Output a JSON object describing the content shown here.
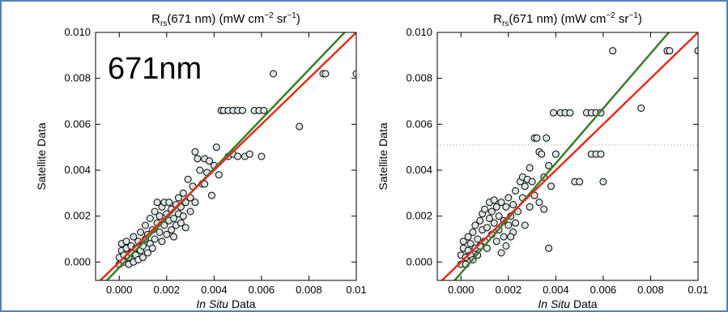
{
  "overlay_label": "671nm",
  "chart_data": [
    {
      "type": "scatter",
      "title": "Rrs(671 nm) (mW cm−2 sr−1)",
      "title_parts": {
        "main": "R",
        "sub": "rs",
        "wave": "(671 nm) (mW cm",
        "exp1": "−2",
        "mid": " sr",
        "exp2": "−1",
        "end": ")"
      },
      "xlabel": "In Situ Data",
      "xlabel_parts": {
        "italic": "In Situ",
        "rest": " Data"
      },
      "ylabel": "Satellite Data",
      "xlim": [
        -0.001,
        0.01
      ],
      "ylim": [
        -0.0008,
        0.01
      ],
      "xticks": [
        "0.000",
        "0.002",
        "0.004",
        "0.006",
        "0.008",
        "0.01"
      ],
      "xtick_values": [
        0,
        0.002,
        0.004,
        0.006,
        0.008,
        0.01
      ],
      "yticks": [
        "0.000",
        "0.002",
        "0.004",
        "0.006",
        "0.008",
        "0.010"
      ],
      "ytick_values": [
        0,
        0.002,
        0.004,
        0.006,
        0.008,
        0.01
      ],
      "grid": false,
      "lines": [
        {
          "color": "#e0301e",
          "x": [
            -0.001,
            0.01
          ],
          "y": [
            -0.001,
            0.01
          ]
        },
        {
          "color": "#3a7d2a",
          "x": [
            -0.0008,
            0.0096
          ],
          "y": [
            -0.0011,
            0.0101
          ]
        }
      ],
      "hline": null,
      "points": [
        [
          0.0,
          -0.0001
        ],
        [
          0.0,
          0.0002
        ],
        [
          0.0001,
          0.0005
        ],
        [
          0.0001,
          0.0008
        ],
        [
          0.0002,
          0.0003
        ],
        [
          0.0002,
          0.0
        ],
        [
          0.0003,
          0.0006
        ],
        [
          0.0003,
          0.0009
        ],
        [
          0.0004,
          0.0002
        ],
        [
          0.0004,
          -0.0001
        ],
        [
          0.0005,
          0.0004
        ],
        [
          0.0005,
          0.0007
        ],
        [
          0.0006,
          0.0
        ],
        [
          0.0006,
          0.0011
        ],
        [
          0.0007,
          0.0003
        ],
        [
          0.0007,
          0.0006
        ],
        [
          0.0008,
          0.0009
        ],
        [
          0.0008,
          0.0001
        ],
        [
          0.0009,
          0.0005
        ],
        [
          0.0009,
          0.0013
        ],
        [
          0.001,
          0.0007
        ],
        [
          0.001,
          0.0002
        ],
        [
          0.0011,
          0.001
        ],
        [
          0.0011,
          0.0016
        ],
        [
          0.0012,
          0.0004
        ],
        [
          0.0012,
          0.0012
        ],
        [
          0.0013,
          0.0008
        ],
        [
          0.0013,
          0.0019
        ],
        [
          0.0014,
          0.0014
        ],
        [
          0.0014,
          0.0006
        ],
        [
          0.0015,
          0.0022
        ],
        [
          0.0015,
          0.001
        ],
        [
          0.0016,
          0.0017
        ],
        [
          0.0016,
          0.0026
        ],
        [
          0.0017,
          0.0013
        ],
        [
          0.0017,
          0.002
        ],
        [
          0.0018,
          0.0009
        ],
        [
          0.0018,
          0.0024
        ],
        [
          0.0019,
          0.0016
        ],
        [
          0.0019,
          0.0026
        ],
        [
          0.002,
          0.0012
        ],
        [
          0.002,
          0.0021
        ],
        [
          0.0021,
          0.0018
        ],
        [
          0.0021,
          0.0026
        ],
        [
          0.0022,
          0.0014
        ],
        [
          0.0022,
          0.0023
        ],
        [
          0.0023,
          0.0019
        ],
        [
          0.0023,
          0.0011
        ],
        [
          0.0024,
          0.0025
        ],
        [
          0.0024,
          0.0016
        ],
        [
          0.0025,
          0.0021
        ],
        [
          0.0025,
          0.0028
        ],
        [
          0.0026,
          0.0017
        ],
        [
          0.0026,
          0.0024
        ],
        [
          0.0027,
          0.003
        ],
        [
          0.0027,
          0.002
        ],
        [
          0.0028,
          0.0026
        ],
        [
          0.0028,
          0.0015
        ],
        [
          0.0029,
          0.0036
        ],
        [
          0.003,
          0.0028
        ],
        [
          0.003,
          0.0022
        ],
        [
          0.0031,
          0.0033
        ],
        [
          0.0032,
          0.0026
        ],
        [
          0.0033,
          0.0045
        ],
        [
          0.0034,
          0.004
        ],
        [
          0.0035,
          0.0034
        ],
        [
          0.0036,
          0.0045
        ],
        [
          0.0037,
          0.0039
        ],
        [
          0.0038,
          0.0044
        ],
        [
          0.004,
          0.0042
        ],
        [
          0.0041,
          0.005
        ],
        [
          0.0042,
          0.0038
        ],
        [
          0.0043,
          0.0066
        ],
        [
          0.0044,
          0.0066
        ],
        [
          0.0046,
          0.0066
        ],
        [
          0.0048,
          0.0066
        ],
        [
          0.005,
          0.0066
        ],
        [
          0.0052,
          0.0066
        ],
        [
          0.0046,
          0.0046
        ],
        [
          0.0048,
          0.0047
        ],
        [
          0.005,
          0.0046
        ],
        [
          0.0053,
          0.0046
        ],
        [
          0.0055,
          0.0047
        ],
        [
          0.0057,
          0.0066
        ],
        [
          0.0059,
          0.0066
        ],
        [
          0.0061,
          0.0066
        ],
        [
          0.006,
          0.0046
        ],
        [
          0.0065,
          0.0082
        ],
        [
          0.0076,
          0.0059
        ],
        [
          0.0086,
          0.0082
        ],
        [
          0.0087,
          0.0082
        ],
        [
          0.01,
          0.0082
        ],
        [
          0.0032,
          0.0048
        ],
        [
          0.0036,
          0.0034
        ],
        [
          0.0039,
          0.0029
        ]
      ]
    },
    {
      "type": "scatter",
      "title": "Rrs(671 nm) (mW cm−2 sr−1)",
      "title_parts": {
        "main": "R",
        "sub": "rs",
        "wave": "(671 nm) (mW cm",
        "exp1": "−2",
        "mid": " sr",
        "exp2": "−1",
        "end": ")"
      },
      "xlabel": "In Situ Data",
      "xlabel_parts": {
        "italic": "In Situ",
        "rest": " Data"
      },
      "ylabel": "Satellite Data",
      "xlim": [
        -0.001,
        0.01
      ],
      "ylim": [
        -0.0008,
        0.01
      ],
      "xticks": [
        "0.000",
        "0.002",
        "0.004",
        "0.006",
        "0.008",
        "0.01"
      ],
      "xtick_values": [
        0,
        0.002,
        0.004,
        0.006,
        0.008,
        0.01
      ],
      "yticks": [
        "0.000",
        "0.002",
        "0.004",
        "0.006",
        "0.008",
        "0.010"
      ],
      "ytick_values": [
        0,
        0.002,
        0.004,
        0.006,
        0.008,
        0.01
      ],
      "grid": false,
      "lines": [
        {
          "color": "#e0301e",
          "x": [
            -0.001,
            0.01
          ],
          "y": [
            -0.001,
            0.01
          ]
        },
        {
          "color": "#3a7d2a",
          "x": [
            -0.0006,
            0.0091
          ],
          "y": [
            -0.0012,
            0.0104
          ]
        }
      ],
      "hline": 0.0051,
      "points": [
        [
          0.0,
          -0.0001
        ],
        [
          0.0,
          0.0003
        ],
        [
          0.0001,
          0.0006
        ],
        [
          0.0001,
          0.0009
        ],
        [
          0.0002,
          0.0002
        ],
        [
          0.0002,
          -0.0001
        ],
        [
          0.0003,
          0.0005
        ],
        [
          0.0003,
          0.0011
        ],
        [
          0.0004,
          0.0003
        ],
        [
          0.0004,
          0.0008
        ],
        [
          0.0005,
          0.0001
        ],
        [
          0.0005,
          0.0013
        ],
        [
          0.0006,
          0.0006
        ],
        [
          0.0006,
          0.0016
        ],
        [
          0.0007,
          0.0003
        ],
        [
          0.0007,
          0.001
        ],
        [
          0.0008,
          0.0018
        ],
        [
          0.0008,
          0.0007
        ],
        [
          0.0009,
          0.0014
        ],
        [
          0.0009,
          0.0021
        ],
        [
          0.001,
          0.0009
        ],
        [
          0.001,
          0.0023
        ],
        [
          0.0011,
          0.0015
        ],
        [
          0.0011,
          0.0006
        ],
        [
          0.0012,
          0.0019
        ],
        [
          0.0012,
          0.0026
        ],
        [
          0.0013,
          0.0012
        ],
        [
          0.0013,
          0.0022
        ],
        [
          0.0014,
          0.0017
        ],
        [
          0.0014,
          0.0027
        ],
        [
          0.0015,
          0.0009
        ],
        [
          0.0015,
          0.0024
        ],
        [
          0.0016,
          0.002
        ],
        [
          0.0016,
          0.0014
        ],
        [
          0.0017,
          0.0026
        ],
        [
          0.0018,
          0.0018
        ],
        [
          0.0018,
          0.0011
        ],
        [
          0.0019,
          0.0024
        ],
        [
          0.002,
          0.0016
        ],
        [
          0.002,
          0.0028
        ],
        [
          0.0021,
          0.002
        ],
        [
          0.0022,
          0.0025
        ],
        [
          0.0022,
          0.0013
        ],
        [
          0.0023,
          0.0031
        ],
        [
          0.0024,
          0.0022
        ],
        [
          0.0025,
          0.0035
        ],
        [
          0.0026,
          0.0028
        ],
        [
          0.0026,
          0.0037
        ],
        [
          0.0027,
          0.0033
        ],
        [
          0.0028,
          0.0036
        ],
        [
          0.0029,
          0.0041
        ],
        [
          0.003,
          0.0035
        ],
        [
          0.0031,
          0.0054
        ],
        [
          0.0032,
          0.0054
        ],
        [
          0.0033,
          0.0048
        ],
        [
          0.0034,
          0.0047
        ],
        [
          0.0035,
          0.0037
        ],
        [
          0.0036,
          0.0054
        ],
        [
          0.0037,
          0.0042
        ],
        [
          0.0038,
          0.0033
        ],
        [
          0.0039,
          0.0065
        ],
        [
          0.004,
          0.0047
        ],
        [
          0.0042,
          0.0065
        ],
        [
          0.0044,
          0.0065
        ],
        [
          0.0046,
          0.0065
        ],
        [
          0.0048,
          0.0035
        ],
        [
          0.005,
          0.0035
        ],
        [
          0.0053,
          0.0065
        ],
        [
          0.0055,
          0.0065
        ],
        [
          0.0057,
          0.0065
        ],
        [
          0.0059,
          0.0065
        ],
        [
          0.0055,
          0.0047
        ],
        [
          0.0057,
          0.0047
        ],
        [
          0.0059,
          0.0047
        ],
        [
          0.006,
          0.0035
        ],
        [
          0.0064,
          0.0092
        ],
        [
          0.0076,
          0.0067
        ],
        [
          0.0087,
          0.0092
        ],
        [
          0.0088,
          0.0092
        ],
        [
          0.01,
          0.0092
        ],
        [
          0.0027,
          0.0016
        ],
        [
          0.0029,
          0.0024
        ],
        [
          0.0031,
          0.0029
        ],
        [
          0.0033,
          0.0026
        ],
        [
          0.0035,
          0.0023
        ],
        [
          0.0037,
          0.0006
        ],
        [
          0.0023,
          0.0017
        ],
        [
          0.0021,
          0.0011
        ],
        [
          0.0019,
          0.0007
        ],
        [
          0.0017,
          0.0004
        ]
      ]
    }
  ]
}
